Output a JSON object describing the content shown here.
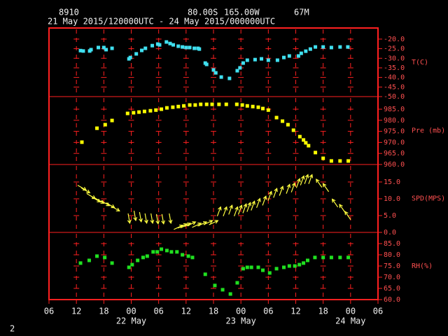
{
  "header": {
    "station": "8910",
    "latitude": "80.00S",
    "longitude": "165.00W",
    "elevation": "67M",
    "period": "21 May 2015/120000UTC - 24 May 2015/000000UTC"
  },
  "footer": "2",
  "chart_data": [
    {
      "type": "scatter",
      "ylabel": "T(C)",
      "color": "#40e0f0",
      "xlim": [
        6,
        78
      ],
      "ylim": [
        -50,
        -14.2
      ],
      "yticks": [
        {
          "value": -20,
          "label": "-20.0"
        },
        {
          "value": -25,
          "label": "-25.0"
        },
        {
          "value": -30,
          "label": "-30.0"
        },
        {
          "value": -35,
          "label": "-35.0"
        },
        {
          "value": -40,
          "label": "-40.0"
        },
        {
          "value": -45,
          "label": "-45.0"
        },
        {
          "value": -50,
          "label": "-50.0"
        }
      ],
      "x": [
        12.9,
        13.5,
        14.9,
        15.2,
        16.8,
        18,
        18.5,
        19.8,
        23.5,
        23.8,
        25.1,
        26.3,
        27.1,
        28.6,
        29.8,
        30.2,
        31.7,
        32.5,
        33.2,
        34.3,
        35.2,
        36,
        36.8,
        37.8,
        38.6,
        38.9,
        40.2,
        40.5,
        42,
        42.5,
        43.7,
        45.5,
        47.2,
        47.8,
        48.5,
        49.4,
        51.1,
        52.5,
        54,
        56,
        57.4,
        58.6,
        60.6,
        61.2,
        62.2,
        63.2,
        64.3,
        66,
        67.8,
        69.7,
        71.4
      ],
      "values": [
        -26,
        -26.2,
        -26.2,
        -25.5,
        -24.4,
        -24.4,
        -25.5,
        -24.8,
        -30.3,
        -29.6,
        -27.7,
        -25.9,
        -24.8,
        -23.4,
        -22.6,
        -23,
        -21.5,
        -22.3,
        -23,
        -23.7,
        -24.1,
        -24.4,
        -24.4,
        -24.8,
        -24.8,
        -25.2,
        -32.5,
        -33.2,
        -36.1,
        -37.6,
        -39.8,
        -40.5,
        -36.5,
        -35,
        -32.5,
        -31,
        -30.7,
        -30.3,
        -31,
        -31,
        -29.6,
        -28.8,
        -28.8,
        -27.4,
        -26.3,
        -25.2,
        -24.1,
        -24.1,
        -24.4,
        -24.1,
        -24.1
      ]
    },
    {
      "type": "scatter",
      "ylabel": "Pre (mb)",
      "color": "#ffff00",
      "xlim": [
        6,
        78
      ],
      "ylim": [
        960,
        990.7
      ],
      "yticks": [
        {
          "value": 985,
          "label": "985.0"
        },
        {
          "value": 980,
          "label": "980.0"
        },
        {
          "value": 975,
          "label": "975.0"
        },
        {
          "value": 970,
          "label": "970.0"
        },
        {
          "value": 965,
          "label": "965.0"
        },
        {
          "value": 960,
          "label": "960.0"
        }
      ],
      "x": [
        13.2,
        16.5,
        18.3,
        19.8,
        23.2,
        24.5,
        25.7,
        26.9,
        28.2,
        29.4,
        30.6,
        31.8,
        33.1,
        34.3,
        35.5,
        36.8,
        38,
        39.2,
        40.5,
        41.7,
        43.2,
        44.8,
        47.1,
        48.3,
        49.4,
        50.6,
        51.8,
        52.8,
        54,
        55.8,
        57.1,
        58.3,
        59.5,
        60.9,
        61.7,
        62.2,
        62.8,
        64.3,
        66,
        67.8,
        69.7,
        71.5
      ],
      "values": [
        970.1,
        976.4,
        978,
        979.9,
        983.1,
        983.4,
        983.7,
        984,
        984.3,
        984.6,
        985,
        985.6,
        985.9,
        986.2,
        986.5,
        986.9,
        986.9,
        987.2,
        987.2,
        987.2,
        987.2,
        987.2,
        987.2,
        986.9,
        986.5,
        986.2,
        985.9,
        985.3,
        984.6,
        981.2,
        979.6,
        978,
        975.5,
        972.6,
        971.1,
        969.8,
        968.5,
        965.4,
        962.8,
        961.6,
        961.6,
        961.6
      ]
    },
    {
      "type": "quiver",
      "ylabel": "SPD(MPS)",
      "color": "#ffff40",
      "xlim": [
        6,
        78
      ],
      "ylim": [
        0,
        20.2
      ],
      "yticks": [
        {
          "value": 15,
          "label": "15.0"
        },
        {
          "value": 10,
          "label": "10.0"
        },
        {
          "value": 5,
          "label": "5.0"
        },
        {
          "value": 0,
          "label": "0.0"
        }
      ],
      "x": [
        13.2,
        14,
        15.2,
        16.3,
        17.1,
        18.3,
        19.4,
        20.5,
        23.5,
        24.8,
        26,
        27.2,
        28.5,
        29.7,
        30.9,
        32.5,
        34.3,
        35.2,
        36,
        37.1,
        38.3,
        39.5,
        40.8,
        42,
        43.2,
        44.5,
        45.7,
        46.9,
        47.8,
        48.8,
        49.7,
        50.6,
        51.8,
        53.1,
        54.3,
        55.5,
        56.8,
        58.3,
        59.4,
        60.5,
        61.4,
        62.3,
        63.2,
        65.1,
        66.6,
        68.6,
        70.2,
        71.4
      ],
      "values": [
        13.3,
        12.5,
        10.8,
        9.8,
        9.4,
        8.7,
        8.1,
        7.1,
        4.2,
        5,
        4.6,
        4.2,
        4.2,
        4,
        4,
        4.2,
        1.5,
        1.9,
        2.1,
        2.5,
        2.1,
        2.5,
        2.9,
        2.9,
        6.2,
        6.2,
        6.7,
        6.2,
        6.7,
        7.1,
        7.5,
        7.9,
        8.7,
        9.4,
        10.8,
        11.7,
        12.3,
        12.9,
        13.3,
        14.6,
        15.4,
        15.8,
        15.8,
        14.6,
        13.3,
        8.7,
        7.1,
        5
      ],
      "direction": [
        300,
        300,
        300,
        300,
        300,
        300,
        300,
        300,
        350,
        350,
        350,
        350,
        350,
        350,
        350,
        350,
        245,
        245,
        245,
        245,
        245,
        245,
        245,
        245,
        200,
        200,
        200,
        200,
        200,
        200,
        200,
        200,
        200,
        200,
        200,
        200,
        200,
        200,
        200,
        200,
        200,
        200,
        200,
        145,
        145,
        145,
        145,
        145
      ]
    },
    {
      "type": "scatter",
      "ylabel": "RH(%)",
      "color": "#20e020",
      "xlim": [
        6,
        78
      ],
      "ylim": [
        60,
        90
      ],
      "yticks": [
        {
          "value": 85,
          "label": "85.0"
        },
        {
          "value": 80,
          "label": "80.0"
        },
        {
          "value": 75,
          "label": "75.0"
        },
        {
          "value": 70,
          "label": "70.0"
        },
        {
          "value": 65,
          "label": "65.0"
        },
        {
          "value": 60,
          "label": "60.0"
        }
      ],
      "x": [
        12.9,
        14.8,
        16.5,
        18.2,
        19.8,
        23.5,
        24.2,
        25.4,
        26.6,
        27.5,
        28.8,
        29.7,
        30.6,
        31.8,
        32.8,
        34,
        35.2,
        36.5,
        37.4,
        40.2,
        42.3,
        44,
        45.7,
        47.2,
        48.5,
        49.4,
        50.3,
        51.8,
        52.8,
        54.3,
        55.8,
        57.4,
        58.6,
        59.8,
        60.8,
        61.7,
        62.6,
        64.2,
        66,
        67.8,
        69.7,
        71.5
      ],
      "values": [
        76.3,
        77.5,
        79.4,
        78.8,
        76.3,
        74.4,
        75.6,
        77.5,
        78.8,
        79.4,
        81.3,
        81.3,
        82.5,
        81.9,
        81.3,
        81.3,
        80,
        79.4,
        78.8,
        71.3,
        66.3,
        64.4,
        62.5,
        67.5,
        73.8,
        74.4,
        74.4,
        74.4,
        73.1,
        71.9,
        73.8,
        74.4,
        75,
        75,
        75.6,
        76.3,
        77.5,
        78.8,
        78.8,
        78.8,
        78.8,
        78.8
      ],
      "xticks": [
        {
          "value": 6,
          "label": "06"
        },
        {
          "value": 12,
          "label": "12"
        },
        {
          "value": 18,
          "label": "18"
        },
        {
          "value": 24,
          "label": "00"
        },
        {
          "value": 30,
          "label": "06"
        },
        {
          "value": 36,
          "label": "12"
        },
        {
          "value": 42,
          "label": "18"
        },
        {
          "value": 48,
          "label": "00"
        },
        {
          "value": 54,
          "label": "06"
        },
        {
          "value": 60,
          "label": "12"
        },
        {
          "value": 66,
          "label": "18"
        },
        {
          "value": 72,
          "label": "00"
        },
        {
          "value": 78,
          "label": "06"
        }
      ],
      "date_ticks": [
        {
          "value": 24,
          "label": "22 May"
        },
        {
          "value": 48,
          "label": "23 May"
        },
        {
          "value": 72,
          "label": "24 May"
        }
      ]
    }
  ]
}
